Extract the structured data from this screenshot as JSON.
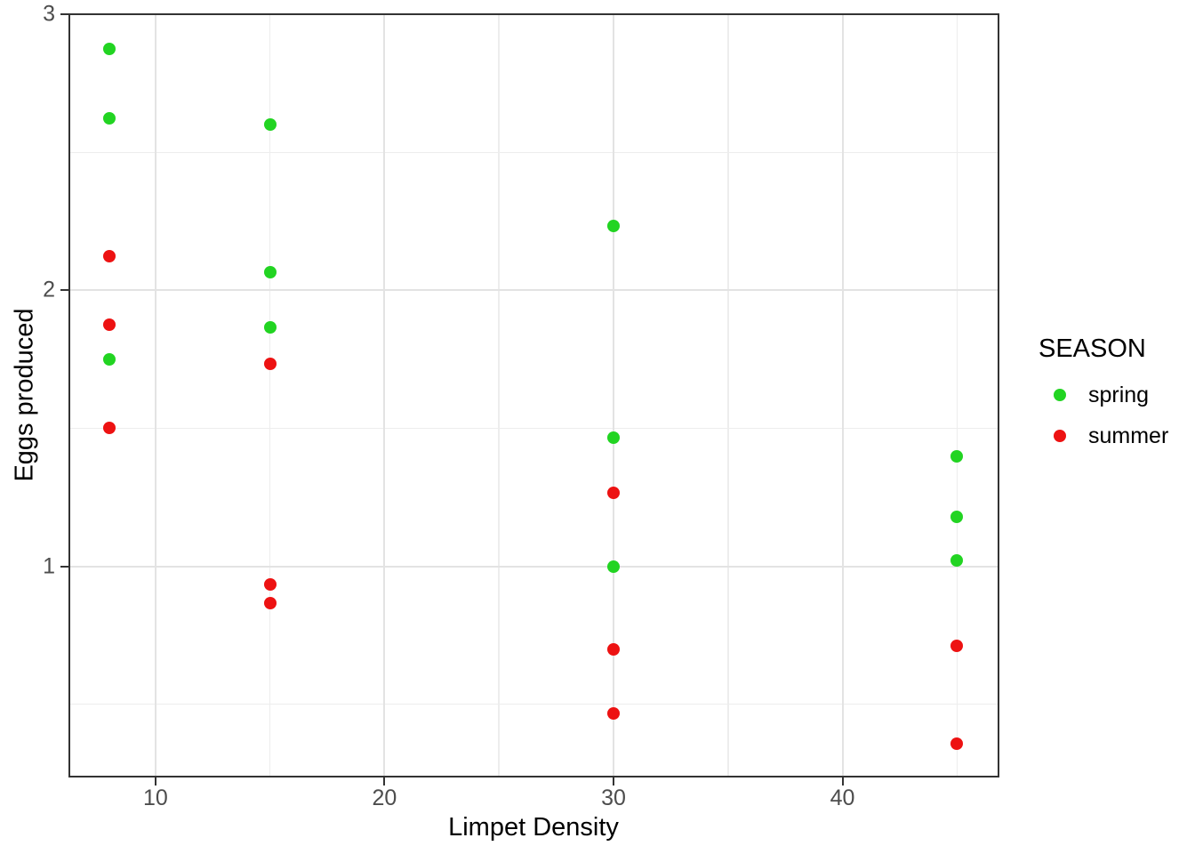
{
  "chart_data": {
    "type": "scatter",
    "title": "",
    "xlabel": "Limpet Density",
    "ylabel": "Eggs produced",
    "xlim": [
      6.2,
      46.85
    ],
    "ylim": [
      0.2345,
      3.004
    ],
    "x_major_ticks": [
      10,
      20,
      30,
      40
    ],
    "y_major_ticks": [
      1,
      2,
      3
    ],
    "x_minor_ticks": [
      15,
      25,
      35,
      45
    ],
    "y_minor_ticks": [
      0.5,
      1.5,
      2.5
    ],
    "grid": "on",
    "legend": {
      "title": "SEASON",
      "position": "right"
    },
    "series": [
      {
        "name": "spring",
        "color": "#22d422",
        "points": [
          {
            "x": 8,
            "y": 2.875
          },
          {
            "x": 8,
            "y": 2.625
          },
          {
            "x": 8,
            "y": 1.75
          },
          {
            "x": 15,
            "y": 2.6
          },
          {
            "x": 15,
            "y": 2.067
          },
          {
            "x": 15,
            "y": 1.867
          },
          {
            "x": 30,
            "y": 2.233
          },
          {
            "x": 30,
            "y": 1.467
          },
          {
            "x": 30,
            "y": 1.0
          },
          {
            "x": 45,
            "y": 1.4
          },
          {
            "x": 45,
            "y": 1.178
          },
          {
            "x": 45,
            "y": 1.022
          }
        ]
      },
      {
        "name": "summer",
        "color": "#ed1212",
        "points": [
          {
            "x": 8,
            "y": 2.125
          },
          {
            "x": 8,
            "y": 1.875
          },
          {
            "x": 8,
            "y": 1.5
          },
          {
            "x": 15,
            "y": 1.733
          },
          {
            "x": 15,
            "y": 0.933
          },
          {
            "x": 15,
            "y": 0.867
          },
          {
            "x": 30,
            "y": 1.267
          },
          {
            "x": 30,
            "y": 0.7
          },
          {
            "x": 30,
            "y": 0.467
          },
          {
            "x": 45,
            "y": 0.711
          },
          {
            "x": 45,
            "y": 0.356
          }
        ]
      }
    ]
  }
}
